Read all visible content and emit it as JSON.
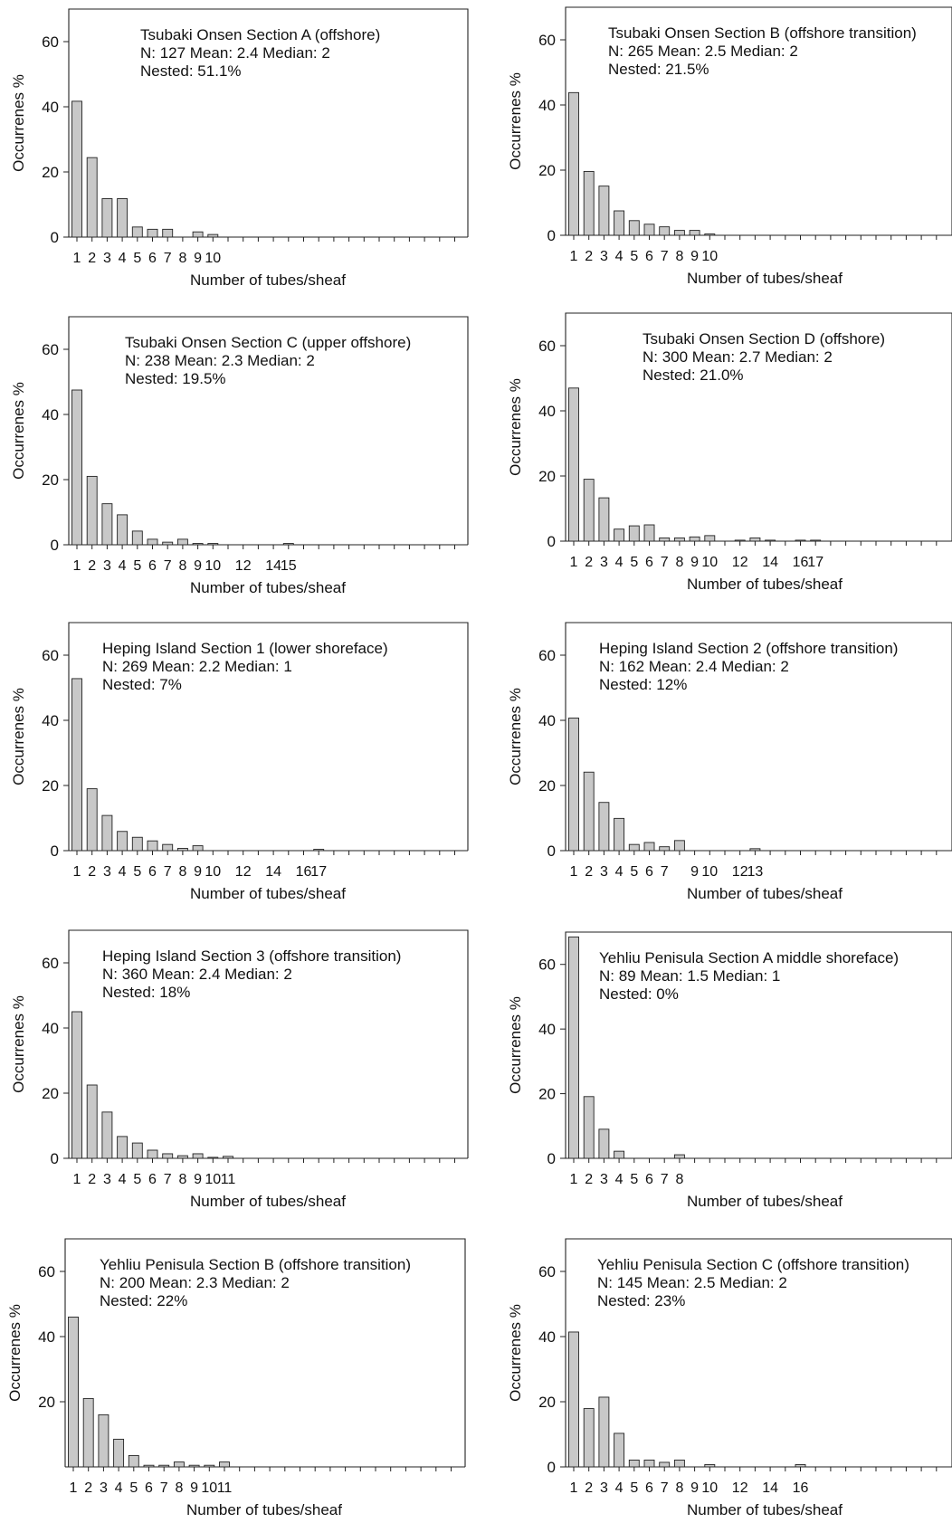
{
  "chart_data": [
    {
      "type": "bar",
      "annotation": [
        "Tsubaki Onsen Section A (offshore)",
        "N: 127  Mean: 2.4  Median: 2",
        "Nested: 51.1%"
      ],
      "xlabel": "Number of tubes/sheaf",
      "ylabel": "Occurrenes %",
      "ylim": [
        0,
        70
      ],
      "yticks": [
        0,
        20,
        40,
        60
      ],
      "xmax": 26,
      "xtick_labels": [
        "1",
        "2",
        "3",
        "4",
        "5",
        "6",
        "7",
        "8",
        "9",
        "10"
      ],
      "categories": [
        1,
        2,
        3,
        4,
        5,
        6,
        7,
        8,
        9,
        10
      ],
      "values": [
        41.7,
        24.4,
        11.8,
        11.8,
        3.1,
        2.4,
        2.4,
        0,
        1.6,
        0.8
      ]
    },
    {
      "type": "bar",
      "annotation": [
        "Tsubaki Onsen Section B (offshore transition)",
        "N: 265  Mean: 2.5  Median: 2",
        "Nested: 21.5%"
      ],
      "xlabel": "Number of tubes/sheaf",
      "ylabel": "Occurrenes %",
      "ylim": [
        0,
        70
      ],
      "yticks": [
        0,
        20,
        40,
        60
      ],
      "xmax": 26,
      "xtick_labels": [
        "1",
        "2",
        "3",
        "4",
        "5",
        "6",
        "7",
        "8",
        "9",
        "10"
      ],
      "categories": [
        1,
        2,
        3,
        4,
        5,
        6,
        7,
        8,
        9,
        10
      ],
      "values": [
        43.8,
        19.6,
        15.1,
        7.5,
        4.5,
        3.4,
        2.6,
        1.5,
        1.5,
        0.4
      ]
    },
    {
      "type": "bar",
      "annotation": [
        "Tsubaki Onsen Section C (upper offshore)",
        "N: 238  Mean: 2.3  Median: 2",
        "Nested: 19.5%"
      ],
      "xlabel": "Number of tubes/sheaf",
      "ylabel": "Occurrenes %",
      "ylim": [
        0,
        70
      ],
      "yticks": [
        0,
        20,
        40,
        60
      ],
      "xmax": 26,
      "xtick_labels": [
        "1",
        "2",
        "3",
        "4",
        "5",
        "6",
        "7",
        "8",
        "9",
        "10",
        "12",
        "14",
        "15"
      ],
      "categories": [
        1,
        2,
        3,
        4,
        5,
        6,
        7,
        8,
        9,
        10,
        11,
        12,
        13,
        14,
        15
      ],
      "values": [
        47.5,
        21.0,
        12.6,
        9.2,
        4.2,
        1.7,
        0.8,
        1.7,
        0.4,
        0.4,
        0,
        0,
        0,
        0,
        0.4
      ]
    },
    {
      "type": "bar",
      "annotation": [
        "Tsubaki Onsen Section D (offshore)",
        "N: 300  Mean: 2.7  Median: 2",
        "Nested: 21.0%"
      ],
      "xlabel": "Number of tubes/sheaf",
      "ylabel": "Occurrenes %",
      "ylim": [
        0,
        70
      ],
      "yticks": [
        0,
        20,
        40,
        60
      ],
      "xmax": 26,
      "xtick_labels": [
        "1",
        "2",
        "3",
        "4",
        "5",
        "6",
        "7",
        "8",
        "9",
        "10",
        "12",
        "14",
        "16",
        "17"
      ],
      "categories": [
        1,
        2,
        3,
        4,
        5,
        6,
        7,
        8,
        9,
        10,
        11,
        12,
        13,
        14,
        15,
        16,
        17
      ],
      "values": [
        47.0,
        19.0,
        13.3,
        3.7,
        4.7,
        5.0,
        1.0,
        1.0,
        1.3,
        1.7,
        0,
        0.3,
        1.0,
        0.3,
        0,
        0.3,
        0.3
      ]
    },
    {
      "type": "bar",
      "annotation": [
        "Heping Island Section 1 (lower shoreface)",
        "N: 269  Mean: 2.2  Median: 1",
        "Nested: 7%"
      ],
      "xlabel": "Number of tubes/sheaf",
      "ylabel": "Occurrenes %",
      "ylim": [
        0,
        70
      ],
      "yticks": [
        0,
        20,
        40,
        60
      ],
      "xmax": 26,
      "xtick_labels": [
        "1",
        "2",
        "3",
        "4",
        "5",
        "6",
        "7",
        "8",
        "9",
        "10",
        "12",
        "14",
        "16",
        "17"
      ],
      "categories": [
        1,
        2,
        3,
        4,
        5,
        6,
        7,
        8,
        9,
        10,
        11,
        12,
        13,
        14,
        15,
        16,
        17
      ],
      "values": [
        52.8,
        19.0,
        10.8,
        5.9,
        4.1,
        3.0,
        1.9,
        0.7,
        1.5,
        0,
        0,
        0,
        0,
        0,
        0,
        0,
        0.4
      ]
    },
    {
      "type": "bar",
      "annotation": [
        "Heping Island Section 2 (offshore transition)",
        "N: 162  Mean: 2.4  Median: 2",
        "Nested: 12%"
      ],
      "xlabel": "Number of tubes/sheaf",
      "ylabel": "Occurrenes %",
      "ylim": [
        0,
        70
      ],
      "yticks": [
        0,
        20,
        40,
        60
      ],
      "xmax": 26,
      "xtick_labels": [
        "1",
        "2",
        "3",
        "4",
        "5",
        "6",
        "7",
        "9",
        "10",
        "12",
        "13"
      ],
      "categories": [
        1,
        2,
        3,
        4,
        5,
        6,
        7,
        8,
        9,
        10,
        11,
        12,
        13
      ],
      "values": [
        40.7,
        24.1,
        14.8,
        9.9,
        1.9,
        2.5,
        1.2,
        3.1,
        0,
        0,
        0,
        0,
        0.6
      ]
    },
    {
      "type": "bar",
      "annotation": [
        "Heping Island Section 3 (offshore transition)",
        "N: 360  Mean: 2.4  Median: 2",
        "Nested: 18%"
      ],
      "xlabel": "Number of tubes/sheaf",
      "ylabel": "Occurrenes %",
      "ylim": [
        0,
        70
      ],
      "yticks": [
        0,
        20,
        40,
        60
      ],
      "xmax": 26,
      "xtick_labels": [
        "1",
        "2",
        "3",
        "4",
        "5",
        "6",
        "7",
        "8",
        "9",
        "10",
        "11"
      ],
      "categories": [
        1,
        2,
        3,
        4,
        5,
        6,
        7,
        8,
        9,
        10,
        11
      ],
      "values": [
        45.0,
        22.5,
        14.2,
        6.7,
        4.7,
        2.5,
        1.4,
        0.8,
        1.4,
        0.3,
        0.6
      ]
    },
    {
      "type": "bar",
      "annotation": [
        "Yehliu Penisula Section A middle shoreface)",
        "N: 89  Mean: 1.5  Median: 1",
        "Nested: 0%"
      ],
      "xlabel": "Number of tubes/sheaf",
      "ylabel": "Occurrenes %",
      "ylim": [
        0,
        70
      ],
      "yticks": [
        0,
        20,
        40,
        60
      ],
      "xmax": 26,
      "xtick_labels": [
        "1",
        "2",
        "3",
        "4",
        "5",
        "6",
        "7",
        "8"
      ],
      "categories": [
        1,
        2,
        3,
        4,
        5,
        6,
        7,
        8
      ],
      "values": [
        68.5,
        19.1,
        9.0,
        2.2,
        0,
        0,
        0,
        1.1
      ]
    },
    {
      "type": "bar",
      "annotation": [
        "Yehliu Penisula Section B (offshore transition)",
        "N: 200  Mean: 2.3  Median: 2",
        "Nested: 22%"
      ],
      "xlabel": "Number of tubes/sheaf",
      "ylabel": "Occurrenes %",
      "ylim": [
        0,
        70
      ],
      "yticks": [
        20,
        40,
        60
      ],
      "xmax": 26,
      "xtick_labels": [
        "1",
        "2",
        "3",
        "4",
        "5",
        "6",
        "7",
        "8",
        "9",
        "10",
        "11"
      ],
      "categories": [
        1,
        2,
        3,
        4,
        5,
        6,
        7,
        8,
        9,
        10,
        11
      ],
      "values": [
        46.0,
        21.0,
        16.0,
        8.5,
        3.5,
        0.5,
        0.5,
        1.5,
        0.5,
        0.5,
        1.5
      ]
    },
    {
      "type": "bar",
      "annotation": [
        "Yehliu Penisula Section C (offshore transition)",
        "N: 145  Mean: 2.5  Median: 2",
        "Nested: 23%"
      ],
      "xlabel": "Number of tubes/sheaf",
      "ylabel": "Occurrenes %",
      "ylim": [
        0,
        70
      ],
      "yticks": [
        0,
        20,
        40,
        60
      ],
      "xmax": 26,
      "xtick_labels": [
        "1",
        "2",
        "3",
        "4",
        "5",
        "6",
        "7",
        "8",
        "9",
        "10",
        "12",
        "14",
        "16"
      ],
      "categories": [
        1,
        2,
        3,
        4,
        5,
        6,
        7,
        8,
        9,
        10,
        11,
        12,
        13,
        14,
        15,
        16
      ],
      "values": [
        41.4,
        17.9,
        21.4,
        10.3,
        2.1,
        2.1,
        1.4,
        2.1,
        0,
        0.7,
        0,
        0,
        0,
        0,
        0,
        0.7
      ]
    }
  ],
  "colors": {
    "bar_fill": "#c8c8c8",
    "bar_stroke": "#222222",
    "axis": "#222222",
    "text": "#111111"
  }
}
